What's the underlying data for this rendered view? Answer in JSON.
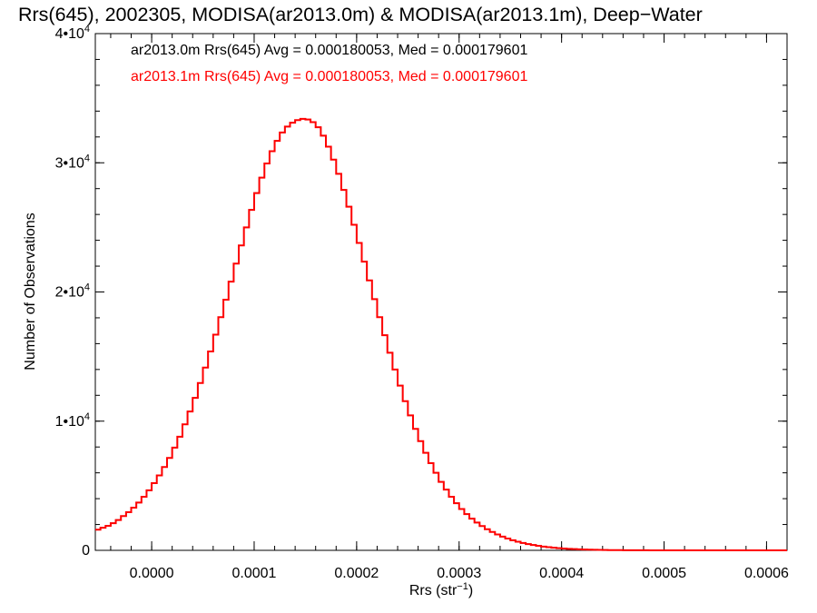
{
  "chart_data": {
    "type": "line",
    "title": "Rrs(645), 2002305, MODISA(ar2013.0m) & MODISA(ar2013.1m), Deep−Water",
    "xlabel": "Rrs (str",
    "xlabel_sup": "−1",
    "xlabel_close": ")",
    "ylabel": "Number of Observations",
    "xlim": [
      -5.5e-05,
      0.00062
    ],
    "ylim": [
      0,
      40000
    ],
    "grid": false,
    "step": true,
    "x_ticks": [
      {
        "value": 0.0,
        "label": "0.0000"
      },
      {
        "value": 0.0001,
        "label": "0.0001"
      },
      {
        "value": 0.0002,
        "label": "0.0002"
      },
      {
        "value": 0.0003,
        "label": "0.0003"
      },
      {
        "value": 0.0004,
        "label": "0.0004"
      },
      {
        "value": 0.0005,
        "label": "0.0005"
      },
      {
        "value": 0.0006,
        "label": "0.0006"
      }
    ],
    "y_ticks": [
      {
        "value": 0,
        "mantissa": "0",
        "exp": ""
      },
      {
        "value": 10000,
        "mantissa": "1•10",
        "exp": "4"
      },
      {
        "value": 20000,
        "mantissa": "2•10",
        "exp": "4"
      },
      {
        "value": 30000,
        "mantissa": "3•10",
        "exp": "4"
      },
      {
        "value": 40000,
        "mantissa": "4•10",
        "exp": "4"
      }
    ],
    "legend_position": "top-left",
    "series": [
      {
        "name": "ar2013.0m Rrs(645) Avg = 0.000180053, Med = 0.000179601",
        "color": "#000000",
        "x": [
          -5.5e-05,
          -5e-05,
          -4.5e-05,
          -4e-05,
          -3.5e-05,
          -3e-05,
          -2.5e-05,
          -2e-05,
          -1.5e-05,
          -1e-05,
          -5e-06,
          0.0,
          5e-06,
          1e-05,
          1.5e-05,
          2e-05,
          2.5e-05,
          3e-05,
          3.5e-05,
          4e-05,
          4.5e-05,
          5e-05,
          5.5e-05,
          6e-05,
          6.5e-05,
          7e-05,
          7.5e-05,
          8e-05,
          8.5e-05,
          9e-05,
          9.5e-05,
          0.0001,
          0.000105,
          0.00011,
          0.000115,
          0.00012,
          0.000125,
          0.00013,
          0.000135,
          0.00014,
          0.000145,
          0.00015,
          0.000155,
          0.00016,
          0.000165,
          0.00017,
          0.000175,
          0.00018,
          0.000185,
          0.00019,
          0.000195,
          0.0002,
          0.000205,
          0.00021,
          0.000215,
          0.00022,
          0.000225,
          0.00023,
          0.000235,
          0.00024,
          0.000245,
          0.00025,
          0.000255,
          0.00026,
          0.000265,
          0.00027,
          0.000275,
          0.00028,
          0.000285,
          0.00029,
          0.000295,
          0.0003,
          0.000305,
          0.00031,
          0.000315,
          0.00032,
          0.000325,
          0.00033,
          0.000335,
          0.00034,
          0.000345,
          0.00035,
          0.000355,
          0.00036,
          0.000365,
          0.00037,
          0.000375,
          0.00038,
          0.000385,
          0.00039,
          0.000395,
          0.0004,
          0.000405,
          0.00041,
          0.000415,
          0.00042,
          0.000425,
          0.00043,
          0.000435,
          0.00044,
          0.000445,
          0.00045,
          0.000455,
          0.00046,
          0.000465,
          0.00047,
          0.000475,
          0.00048,
          0.000485,
          0.00049,
          0.000495,
          0.0005,
          0.000505,
          0.00051,
          0.000515,
          0.00052,
          0.000525,
          0.00053,
          0.000535,
          0.00054,
          0.000545,
          0.00055,
          0.000555,
          0.00056,
          0.000565,
          0.00057,
          0.000575,
          0.00058,
          0.000585,
          0.00059,
          0.000595,
          0.0006,
          0.000605,
          0.00061,
          0.000615
        ],
        "y": [
          1600,
          1750,
          1900,
          2100,
          2350,
          2650,
          2950,
          3300,
          3700,
          4150,
          4650,
          5200,
          5800,
          6450,
          7150,
          7950,
          8800,
          9750,
          10750,
          11800,
          12950,
          14150,
          15400,
          16700,
          18050,
          19400,
          20800,
          22200,
          23600,
          25000,
          26350,
          27650,
          28850,
          29950,
          30900,
          31700,
          32350,
          32800,
          33100,
          33300,
          33400,
          33350,
          33150,
          32750,
          32100,
          31250,
          30250,
          29150,
          27900,
          26600,
          25200,
          23800,
          22350,
          20900,
          19450,
          18050,
          16650,
          15300,
          14000,
          12750,
          11550,
          10450,
          9400,
          8450,
          7550,
          6750,
          6000,
          5300,
          4700,
          4150,
          3650,
          3200,
          2800,
          2450,
          2150,
          1880,
          1630,
          1420,
          1230,
          1060,
          910,
          780,
          670,
          570,
          480,
          410,
          350,
          290,
          245,
          205,
          170,
          140,
          115,
          95,
          78,
          64,
          52,
          42,
          34,
          27,
          22,
          18,
          14,
          11,
          9,
          7,
          6,
          5,
          4,
          3,
          2,
          2,
          1,
          1,
          1,
          1,
          1,
          1,
          1,
          0,
          0,
          0,
          0,
          0,
          0,
          0,
          0,
          0,
          0,
          0,
          0,
          0,
          0,
          0,
          0
        ]
      },
      {
        "name": "ar2013.1m Rrs(645) Avg = 0.000180053, Med = 0.000179601",
        "color": "#ff0000",
        "x": [
          -5.5e-05,
          -5e-05,
          -4.5e-05,
          -4e-05,
          -3.5e-05,
          -3e-05,
          -2.5e-05,
          -2e-05,
          -1.5e-05,
          -1e-05,
          -5e-06,
          0.0,
          5e-06,
          1e-05,
          1.5e-05,
          2e-05,
          2.5e-05,
          3e-05,
          3.5e-05,
          4e-05,
          4.5e-05,
          5e-05,
          5.5e-05,
          6e-05,
          6.5e-05,
          7e-05,
          7.5e-05,
          8e-05,
          8.5e-05,
          9e-05,
          9.5e-05,
          0.0001,
          0.000105,
          0.00011,
          0.000115,
          0.00012,
          0.000125,
          0.00013,
          0.000135,
          0.00014,
          0.000145,
          0.00015,
          0.000155,
          0.00016,
          0.000165,
          0.00017,
          0.000175,
          0.00018,
          0.000185,
          0.00019,
          0.000195,
          0.0002,
          0.000205,
          0.00021,
          0.000215,
          0.00022,
          0.000225,
          0.00023,
          0.000235,
          0.00024,
          0.000245,
          0.00025,
          0.000255,
          0.00026,
          0.000265,
          0.00027,
          0.000275,
          0.00028,
          0.000285,
          0.00029,
          0.000295,
          0.0003,
          0.000305,
          0.00031,
          0.000315,
          0.00032,
          0.000325,
          0.00033,
          0.000335,
          0.00034,
          0.000345,
          0.00035,
          0.000355,
          0.00036,
          0.000365,
          0.00037,
          0.000375,
          0.00038,
          0.000385,
          0.00039,
          0.000395,
          0.0004,
          0.000405,
          0.00041,
          0.000415,
          0.00042,
          0.000425,
          0.00043,
          0.000435,
          0.00044,
          0.000445,
          0.00045,
          0.000455,
          0.00046,
          0.000465,
          0.00047,
          0.000475,
          0.00048,
          0.000485,
          0.00049,
          0.000495,
          0.0005,
          0.000505,
          0.00051,
          0.000515,
          0.00052,
          0.000525,
          0.00053,
          0.000535,
          0.00054,
          0.000545,
          0.00055,
          0.000555,
          0.00056,
          0.000565,
          0.00057,
          0.000575,
          0.00058,
          0.000585,
          0.00059,
          0.000595,
          0.0006,
          0.000605,
          0.00061,
          0.000615
        ],
        "y": [
          1600,
          1750,
          1900,
          2100,
          2350,
          2650,
          2950,
          3300,
          3700,
          4150,
          4650,
          5200,
          5800,
          6450,
          7150,
          7950,
          8800,
          9750,
          10750,
          11800,
          12950,
          14150,
          15400,
          16700,
          18050,
          19400,
          20800,
          22200,
          23600,
          25000,
          26350,
          27650,
          28850,
          29950,
          30900,
          31700,
          32350,
          32800,
          33100,
          33300,
          33400,
          33350,
          33150,
          32750,
          32100,
          31250,
          30250,
          29150,
          27900,
          26600,
          25200,
          23800,
          22350,
          20900,
          19450,
          18050,
          16650,
          15300,
          14000,
          12750,
          11550,
          10450,
          9400,
          8450,
          7550,
          6750,
          6000,
          5300,
          4700,
          4150,
          3650,
          3200,
          2800,
          2450,
          2150,
          1880,
          1630,
          1420,
          1230,
          1060,
          910,
          780,
          670,
          570,
          480,
          410,
          350,
          290,
          245,
          205,
          170,
          140,
          115,
          95,
          78,
          64,
          52,
          42,
          34,
          27,
          22,
          18,
          14,
          11,
          9,
          7,
          6,
          5,
          4,
          3,
          2,
          2,
          1,
          1,
          1,
          1,
          1,
          1,
          1,
          0,
          0,
          0,
          0,
          0,
          0,
          0,
          0,
          0,
          0,
          0,
          0,
          0,
          0,
          0,
          0
        ]
      }
    ]
  }
}
